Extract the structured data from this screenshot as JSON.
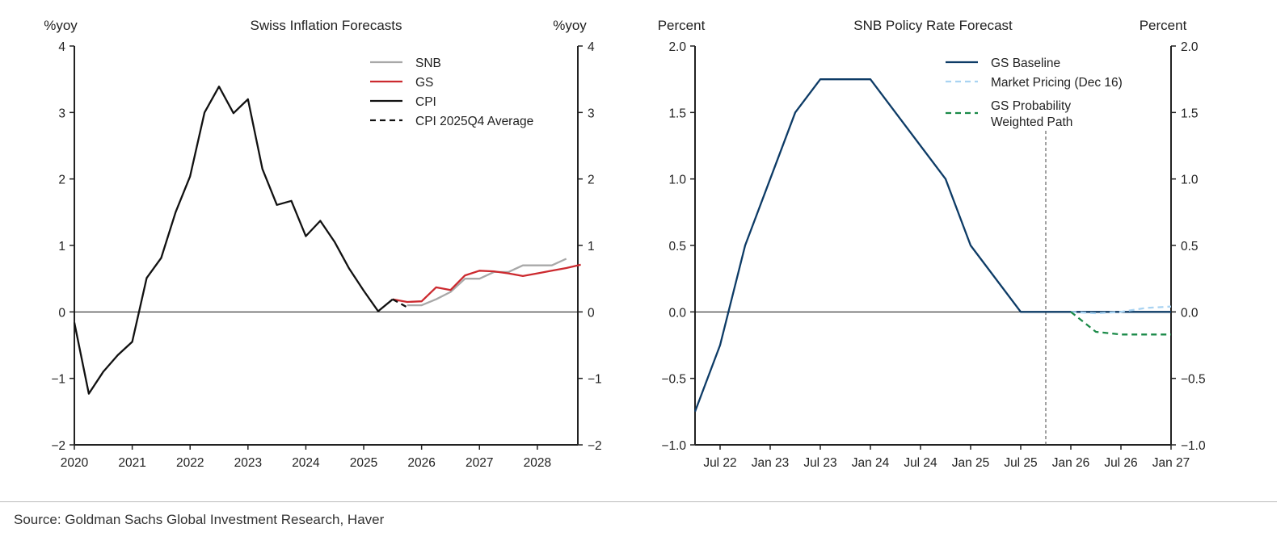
{
  "chart_data": [
    {
      "type": "line",
      "title": "Swiss Inflation Forecasts",
      "ylabel_left": "%yoy",
      "ylabel_right": "%yoy",
      "ylim": [
        -2,
        4
      ],
      "yticks": [
        -2,
        -1,
        0,
        1,
        2,
        3,
        4
      ],
      "xlim": [
        2020,
        2028.7
      ],
      "xticks": [
        2020,
        2021,
        2022,
        2023,
        2024,
        2025,
        2026,
        2027,
        2028
      ],
      "legend": "top-right",
      "series": [
        {
          "name": "SNB",
          "color": "#a8a8a8",
          "dash": false,
          "x": [
            2025.75,
            2026,
            2026.25,
            2026.5,
            2026.75,
            2027,
            2027.25,
            2027.5,
            2027.75,
            2028,
            2028.25,
            2028.5
          ],
          "y": [
            0.1,
            0.1,
            0.19,
            0.3,
            0.5,
            0.5,
            0.6,
            0.6,
            0.7,
            0.7,
            0.7,
            0.8
          ]
        },
        {
          "name": "GS",
          "color": "#cc2a2f",
          "dash": false,
          "x": [
            2025.5,
            2025.75,
            2026,
            2026.25,
            2026.5,
            2026.75,
            2027,
            2027.25,
            2027.5,
            2027.75,
            2028,
            2028.25,
            2028.5,
            2028.75
          ],
          "y": [
            0.19,
            0.15,
            0.16,
            0.37,
            0.33,
            0.55,
            0.62,
            0.61,
            0.58,
            0.54,
            0.58,
            0.62,
            0.66,
            0.71
          ]
        },
        {
          "name": "CPI",
          "color": "#111111",
          "dash": false,
          "x": [
            2020,
            2020.25,
            2020.5,
            2020.75,
            2021,
            2021.25,
            2021.5,
            2021.75,
            2022,
            2022.25,
            2022.5,
            2022.75,
            2023,
            2023.25,
            2023.5,
            2023.75,
            2024,
            2024.25,
            2024.5,
            2024.75,
            2025,
            2025.25,
            2025.5
          ],
          "y": [
            -0.16,
            -1.23,
            -0.9,
            -0.65,
            -0.45,
            0.51,
            0.81,
            1.5,
            2.04,
            3.0,
            3.39,
            2.99,
            3.2,
            2.15,
            1.61,
            1.67,
            1.14,
            1.37,
            1.05,
            0.65,
            0.32,
            0.01,
            0.19
          ]
        },
        {
          "name": "CPI 2025Q4 Average",
          "color": "#111111",
          "dash": true,
          "x": [
            2025.5,
            2025.75
          ],
          "y": [
            0.19,
            0.07
          ]
        }
      ]
    },
    {
      "type": "line",
      "title": "SNB Policy Rate Forecast",
      "ylabel_left": "Percent",
      "ylabel_right": "Percent",
      "ylim": [
        -1.0,
        2.0
      ],
      "yticks": [
        "-1.0",
        "-0.5",
        "0.0",
        "0.5",
        "1.0",
        "1.5",
        "2.0"
      ],
      "xlim": [
        "2022-04",
        "2027-01"
      ],
      "xticks": [
        {
          "x": "2022-07",
          "label": "Jul 22"
        },
        {
          "x": "2023-01",
          "label": "Jan 23"
        },
        {
          "x": "2023-07",
          "label": "Jul 23"
        },
        {
          "x": "2024-01",
          "label": "Jan 24"
        },
        {
          "x": "2024-07",
          "label": "Jul 24"
        },
        {
          "x": "2025-01",
          "label": "Jan 25"
        },
        {
          "x": "2025-07",
          "label": "Jul 25"
        },
        {
          "x": "2026-01",
          "label": "Jan 26"
        },
        {
          "x": "2026-07",
          "label": "Jul 26"
        },
        {
          "x": "2027-01",
          "label": "Jan 27"
        }
      ],
      "vline": "2025-10",
      "legend": "top-right",
      "series": [
        {
          "name": "GS Baseline",
          "color": "#0d3b66",
          "dash": false,
          "x": [
            "2022-04",
            "2022-07",
            "2022-10",
            "2023-01",
            "2023-04",
            "2023-07",
            "2024-01",
            "2024-10",
            "2025-01",
            "2025-07",
            "2027-01"
          ],
          "y": [
            -0.75,
            -0.25,
            0.5,
            1.0,
            1.5,
            1.75,
            1.75,
            1.0,
            0.5,
            0.0,
            0.0
          ]
        },
        {
          "name": "Market Pricing (Dec 16)",
          "color": "#a9d3f2",
          "dash": true,
          "x": [
            "2026-01",
            "2026-04",
            "2026-07",
            "2026-10",
            "2027-01"
          ],
          "y": [
            0.0,
            -0.01,
            0.0,
            0.03,
            0.04
          ]
        },
        {
          "name": "GS Probability Weighted Path",
          "name_lines": [
            "GS Probability",
            "Weighted Path"
          ],
          "color": "#1a8a48",
          "dash": true,
          "x": [
            "2026-01",
            "2026-04",
            "2026-07",
            "2027-01"
          ],
          "y": [
            0.0,
            -0.15,
            -0.17,
            -0.17
          ]
        }
      ]
    }
  ],
  "source": "Source: Goldman Sachs Global Investment Research, Haver"
}
